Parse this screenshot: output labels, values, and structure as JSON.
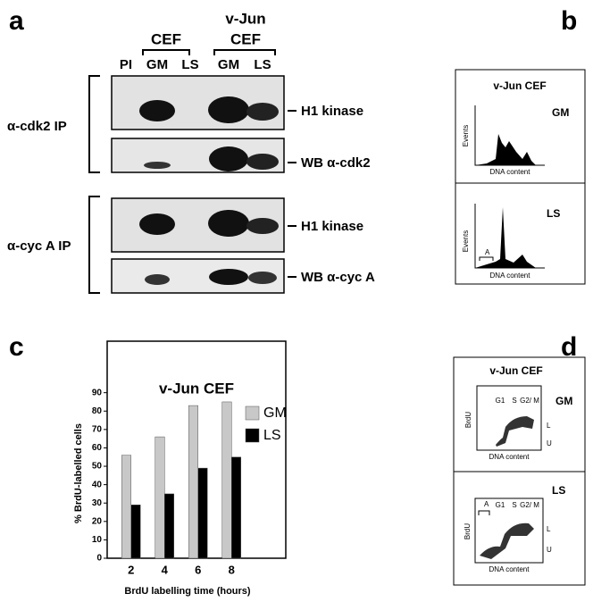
{
  "panel_a": {
    "label": "a",
    "cef": "CEF",
    "vjun": [
      "v-Jun",
      "CEF"
    ],
    "lanes": [
      "PI",
      "GM",
      "LS",
      "GM",
      "LS"
    ],
    "groups": [
      {
        "label": "α-cdk2 IP",
        "blots": [
          "H1 kinase",
          "WB α-cdk2"
        ]
      },
      {
        "label": "α-cyc A IP",
        "blots": [
          "H1 kinase",
          "WB α-cyc A"
        ]
      }
    ]
  },
  "panel_b": {
    "label": "b",
    "title": "v-Jun CEF",
    "plots": [
      {
        "condition": "GM",
        "y_label": "Events",
        "x_label": "DNA content"
      },
      {
        "condition": "LS",
        "y_label": "Events",
        "x_label": "DNA content",
        "marker": "A"
      }
    ]
  },
  "panel_c": {
    "label": "c"
  },
  "chart_data": {
    "type": "bar",
    "title": "v-Jun CEF",
    "x_label": "BrdU labelling time (hours)",
    "y_label": "% BrdU-labelled cells",
    "categories": [
      "2",
      "4",
      "6",
      "8"
    ],
    "series": [
      {
        "name": "GM",
        "color": "#c8c8c8",
        "values": [
          56,
          66,
          83,
          85
        ]
      },
      {
        "name": "LS",
        "color": "#000000",
        "values": [
          29,
          35,
          49,
          55
        ]
      }
    ],
    "ylim": [
      0,
      118
    ],
    "yticks": [
      0,
      10,
      20,
      30,
      40,
      50,
      60,
      70,
      80,
      90
    ],
    "legend": "upper right"
  },
  "panel_d": {
    "label": "d",
    "title": "v-Jun CEF",
    "plots": [
      {
        "condition": "GM",
        "y_label": "BrdU",
        "x_label": "DNA content",
        "phases": [
          "G1",
          "S",
          "G2/ M"
        ],
        "zones": [
          "L",
          "U"
        ]
      },
      {
        "condition": "LS",
        "y_label": "BrdU",
        "x_label": "DNA content",
        "marker": "A",
        "phases": [
          "G1",
          "S",
          "G2/ M"
        ],
        "zones": [
          "L",
          "U"
        ]
      }
    ]
  }
}
